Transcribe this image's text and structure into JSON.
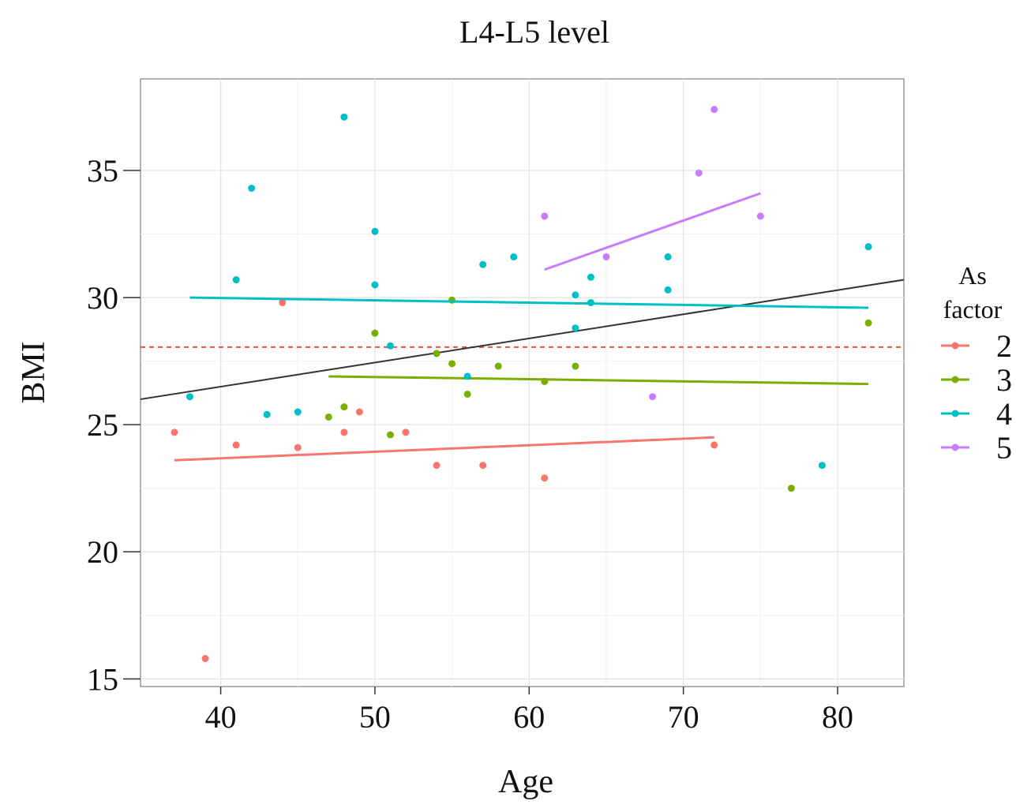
{
  "chart_data": {
    "type": "scatter",
    "title": "L4-L5 level",
    "xlabel": "Age",
    "ylabel": "BMI",
    "xlim": [
      34.8,
      84.3
    ],
    "ylim": [
      14.7,
      38.6
    ],
    "xticks": [
      40,
      50,
      60,
      70,
      80
    ],
    "yticks": [
      15,
      20,
      25,
      30,
      35
    ],
    "grid": true,
    "legend": {
      "title_lines": [
        "As",
        "factor"
      ],
      "placement": "right"
    },
    "series": [
      {
        "name": "2",
        "color": "#F8766D",
        "points": [
          [
            37,
            24.7
          ],
          [
            39,
            15.8
          ],
          [
            41,
            24.2
          ],
          [
            44,
            29.8
          ],
          [
            45,
            24.1
          ],
          [
            48,
            24.7
          ],
          [
            49,
            25.5
          ],
          [
            52,
            24.7
          ],
          [
            54,
            23.4
          ],
          [
            57,
            23.4
          ],
          [
            61,
            22.9
          ],
          [
            72,
            24.2
          ]
        ],
        "fit": [
          [
            37,
            23.6
          ],
          [
            72,
            24.5
          ]
        ]
      },
      {
        "name": "3",
        "color": "#7CAE00",
        "points": [
          [
            47,
            25.3
          ],
          [
            48,
            25.7
          ],
          [
            50,
            28.6
          ],
          [
            51,
            24.6
          ],
          [
            54,
            27.8
          ],
          [
            55,
            29.9
          ],
          [
            55,
            27.4
          ],
          [
            56,
            26.2
          ],
          [
            58,
            27.3
          ],
          [
            61,
            26.7
          ],
          [
            63,
            27.3
          ],
          [
            77,
            22.5
          ],
          [
            82,
            29.0
          ]
        ],
        "fit": [
          [
            47,
            26.9
          ],
          [
            82,
            26.6
          ]
        ]
      },
      {
        "name": "4",
        "color": "#00BFC4",
        "points": [
          [
            38,
            26.1
          ],
          [
            41,
            30.7
          ],
          [
            42,
            34.3
          ],
          [
            43,
            25.4
          ],
          [
            45,
            25.5
          ],
          [
            48,
            37.1
          ],
          [
            50,
            32.6
          ],
          [
            50,
            30.5
          ],
          [
            51,
            28.1
          ],
          [
            56,
            26.9
          ],
          [
            57,
            31.3
          ],
          [
            59,
            31.6
          ],
          [
            63,
            30.1
          ],
          [
            63,
            28.8
          ],
          [
            64,
            30.8
          ],
          [
            64,
            29.8
          ],
          [
            69,
            31.6
          ],
          [
            69,
            30.3
          ],
          [
            79,
            23.4
          ],
          [
            82,
            32.0
          ]
        ],
        "fit": [
          [
            38,
            30.0
          ],
          [
            82,
            29.6
          ]
        ]
      },
      {
        "name": "5",
        "color": "#C77CFF",
        "points": [
          [
            61,
            33.2
          ],
          [
            65,
            31.6
          ],
          [
            68,
            26.1
          ],
          [
            71,
            34.9
          ],
          [
            72,
            37.4
          ],
          [
            75,
            33.2
          ]
        ],
        "fit": [
          [
            61,
            31.1
          ],
          [
            75,
            34.1
          ]
        ]
      }
    ],
    "overall_fit": {
      "color": "#333333",
      "line": [
        [
          34.8,
          26.0
        ],
        [
          84.3,
          30.7
        ]
      ]
    },
    "reference_line": {
      "color": "#E8504A",
      "y": 28.05,
      "style": "dashed"
    }
  }
}
